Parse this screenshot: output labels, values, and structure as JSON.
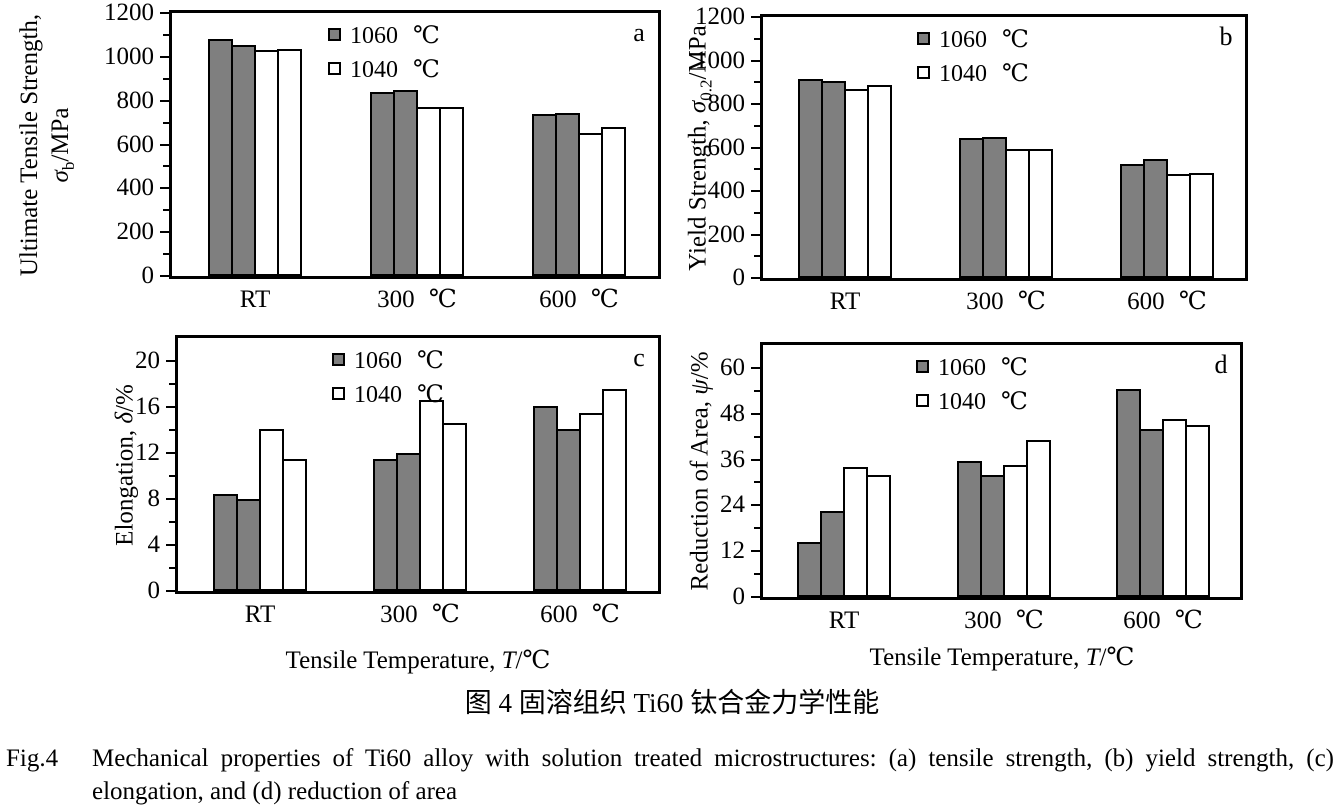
{
  "colors": {
    "series": {
      "1060 ℃": "#7f7f7f",
      "1040 ℃": "#ffffff"
    },
    "axis": "#000000",
    "background": "#ffffff"
  },
  "figure": {
    "caption_zh": "图 4  固溶组织 Ti60 钛合金力学性能",
    "caption_en_label": "Fig.4",
    "caption_en": "Mechanical properties of Ti60 alloy with solution treated microstructures: (a) tensile strength, (b) yield strength, (c) elongation, and (d) reduction of area"
  },
  "chart_data": [
    {
      "panel_letter": "a",
      "type": "bar",
      "title": "",
      "ylabel": "Ultimate Tensile Strength, σb/MPa",
      "ylabel_lines": [
        [
          {
            "t": "Ultimate Tensile Strength,"
          }
        ],
        [
          {
            "t": "σ",
            "italic": true
          },
          {
            "t": "b",
            "sub": true
          },
          {
            "t": "/MPa"
          }
        ]
      ],
      "categories": [
        "RT",
        "300 ℃",
        "600 ℃"
      ],
      "legend": [
        "1060 ℃",
        "1040 ℃"
      ],
      "series": [
        {
          "name": "1060 ℃",
          "values": [
            1080,
            838,
            737
          ]
        },
        {
          "name": "1060 ℃",
          "values": [
            1055,
            850,
            744
          ]
        },
        {
          "name": "1040 ℃",
          "values": [
            1030,
            770,
            653
          ]
        },
        {
          "name": "1040 ℃",
          "values": [
            1037,
            770,
            682
          ]
        }
      ],
      "ylim": [
        0,
        1200
      ],
      "ytick_step": 200,
      "yminor_step": 100,
      "grid": false,
      "legend_position": "inside upper center-left"
    },
    {
      "panel_letter": "b",
      "type": "bar",
      "title": "",
      "ylabel": "Yield Strength, σ0.2/MPa",
      "ylabel_lines": [
        [
          {
            "t": "Yield Strength, "
          },
          {
            "t": "σ",
            "italic": true
          },
          {
            "t": "0.2",
            "sub": true
          },
          {
            "t": "/MPa"
          }
        ]
      ],
      "categories": [
        "RT",
        "300 ℃",
        "600 ℃"
      ],
      "legend": [
        "1060 ℃",
        "1040 ℃"
      ],
      "series": [
        {
          "name": "1060 ℃",
          "values": [
            915,
            645,
            524
          ]
        },
        {
          "name": "1060 ℃",
          "values": [
            905,
            650,
            547
          ]
        },
        {
          "name": "1040 ℃",
          "values": [
            868,
            593,
            478
          ]
        },
        {
          "name": "1040 ℃",
          "values": [
            886,
            593,
            483
          ]
        }
      ],
      "ylim": [
        0,
        1200
      ],
      "ytick_step": 200,
      "yminor_step": 100,
      "grid": false,
      "legend_position": "inside upper center-left"
    },
    {
      "panel_letter": "c",
      "type": "bar",
      "title": "",
      "ylabel": "Elongation, δ/%",
      "ylabel_lines": [
        [
          {
            "t": "Elongation, "
          },
          {
            "t": "δ",
            "italic": true
          },
          {
            "t": "/%"
          }
        ]
      ],
      "xlabel": "Tensile Temperature, T/℃",
      "xlabel_segments": [
        {
          "t": "Tensile Temperature, "
        },
        {
          "t": "T",
          "italic": true
        },
        {
          "t": "/℃"
        }
      ],
      "categories": [
        "RT",
        "300 ℃",
        "600 ℃"
      ],
      "legend": [
        "1060 ℃",
        "1040 ℃"
      ],
      "series": [
        {
          "name": "1060 ℃",
          "values": [
            8.4,
            11.5,
            16.1
          ]
        },
        {
          "name": "1060 ℃",
          "values": [
            8.0,
            12.0,
            14.1
          ]
        },
        {
          "name": "1040 ℃",
          "values": [
            14.1,
            16.6,
            15.5
          ]
        },
        {
          "name": "1040 ℃",
          "values": [
            11.5,
            14.6,
            17.6
          ]
        }
      ],
      "ylim": [
        0,
        22
      ],
      "ytick_step": 4,
      "yminor_step": 2,
      "grid": false,
      "legend_position": "inside upper center-left"
    },
    {
      "panel_letter": "d",
      "type": "bar",
      "title": "",
      "ylabel": "Reduction of Area, ψ/%",
      "ylabel_lines": [
        [
          {
            "t": "Reduction of Area, "
          },
          {
            "t": "ψ",
            "italic": true
          },
          {
            "t": "/%"
          }
        ]
      ],
      "xlabel": "Tensile Temperature, T/℃",
      "xlabel_segments": [
        {
          "t": "Tensile Temperature, "
        },
        {
          "t": "T",
          "italic": true
        },
        {
          "t": "/℃"
        }
      ],
      "categories": [
        "RT",
        "300 ℃",
        "600 ℃"
      ],
      "legend": [
        "1060 ℃",
        "1040 ℃"
      ],
      "series": [
        {
          "name": "1060 ℃",
          "values": [
            14.5,
            35.5,
            54.5
          ]
        },
        {
          "name": "1060 ℃",
          "values": [
            22.5,
            32,
            44
          ]
        },
        {
          "name": "1040 ℃",
          "values": [
            34,
            34.5,
            46.5
          ]
        },
        {
          "name": "1040 ℃",
          "values": [
            32,
            41,
            45
          ]
        }
      ],
      "ylim": [
        0,
        66
      ],
      "ytick_step": 12,
      "yminor_step": 6,
      "grid": false,
      "legend_position": "inside upper center-left"
    }
  ]
}
